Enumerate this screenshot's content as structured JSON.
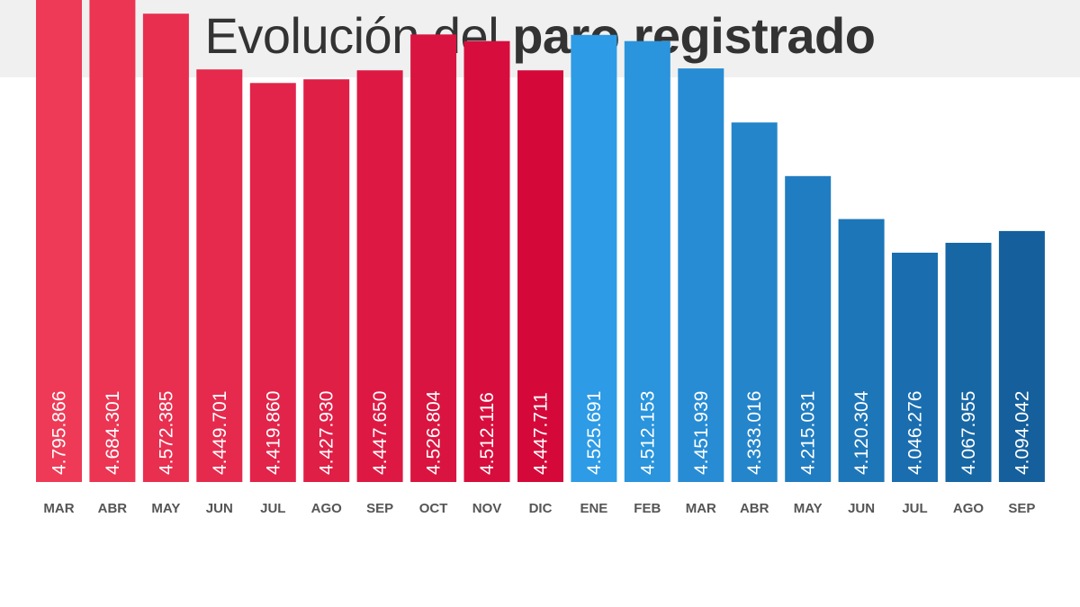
{
  "title": {
    "prefix": "Evolución del",
    "emphasis": "paro registrado"
  },
  "chart_data": {
    "type": "bar",
    "title": "Evolución del paro registrado",
    "xlabel": "",
    "ylabel": "",
    "grid": false,
    "legend": "none",
    "value_labels_orientation": "vertical",
    "categories": [
      "MAR",
      "ABR",
      "MAY",
      "JUN",
      "JUL",
      "AGO",
      "SEP",
      "OCT",
      "NOV",
      "DIC",
      "ENE",
      "FEB",
      "MAR",
      "ABR",
      "MAY",
      "JUN",
      "JUL",
      "AGO",
      "SEP"
    ],
    "values": [
      4795866,
      4684301,
      4572385,
      4449701,
      4419860,
      4427930,
      4447650,
      4526804,
      4512116,
      4447711,
      4525691,
      4512153,
      4451939,
      4333016,
      4215031,
      4120304,
      4046276,
      4067955,
      4094042
    ],
    "value_labels": [
      "4.795.866",
      "4.684.301",
      "4.572.385",
      "4.449.701",
      "4.419.860",
      "4.427.930",
      "4.447.650",
      "4.526.804",
      "4.512.116",
      "4.447.711",
      "4.525.691",
      "4.512.153",
      "4.451.939",
      "4.333.016",
      "4.215.031",
      "4.120.304",
      "4.046.276",
      "4.067.955",
      "4.094.042"
    ],
    "colors": {
      "first_period_start": "#ee3a56",
      "first_period_end": "#d4093a",
      "second_period_start": "#2d9be6",
      "second_period_end": "#145f9c",
      "label_text": "#ffffff",
      "axis_text": "#555555"
    },
    "first_period_count": 10
  }
}
